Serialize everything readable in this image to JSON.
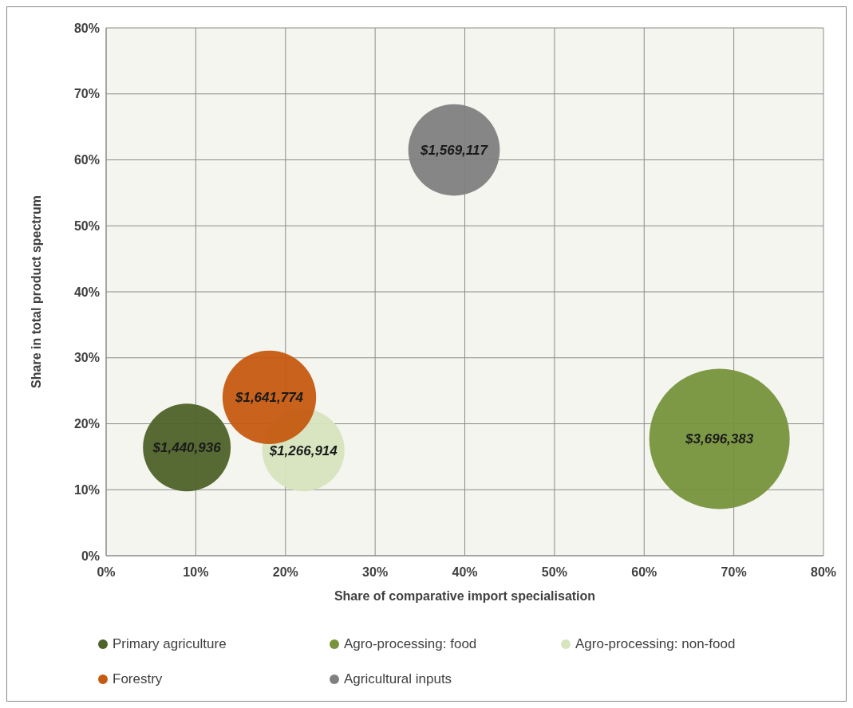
{
  "chart_data": {
    "type": "bubble",
    "xlabel": "Share of comparative import specialisation",
    "ylabel": "Share in total product spectrum",
    "xlim": [
      0,
      80
    ],
    "ylim": [
      0,
      80
    ],
    "xticks": [
      {
        "value": 0,
        "label": "0%"
      },
      {
        "value": 10,
        "label": "10%"
      },
      {
        "value": 20,
        "label": "20%"
      },
      {
        "value": 30,
        "label": "30%"
      },
      {
        "value": 40,
        "label": "40%"
      },
      {
        "value": 50,
        "label": "50%"
      },
      {
        "value": 60,
        "label": "60%"
      },
      {
        "value": 70,
        "label": "70%"
      },
      {
        "value": 80,
        "label": "80%"
      }
    ],
    "yticks": [
      {
        "value": 0,
        "label": "0%"
      },
      {
        "value": 10,
        "label": "10%"
      },
      {
        "value": 20,
        "label": "20%"
      },
      {
        "value": 30,
        "label": "30%"
      },
      {
        "value": 40,
        "label": "40%"
      },
      {
        "value": 50,
        "label": "50%"
      },
      {
        "value": 60,
        "label": "60%"
      },
      {
        "value": 70,
        "label": "70%"
      },
      {
        "value": 80,
        "label": "80%"
      }
    ],
    "grid": true,
    "legend": "bottom",
    "series": [
      {
        "name": "Primary agriculture",
        "color": "#4f6228",
        "x": [
          9
        ],
        "values": [
          16.4
        ],
        "sizes": [
          1440936
        ],
        "value_labels": [
          "$1,440,936"
        ]
      },
      {
        "name": "Agro-processing: food",
        "color": "#77933c",
        "x": [
          68.4
        ],
        "values": [
          17.7
        ],
        "sizes": [
          3696383
        ],
        "value_labels": [
          "$3,696,383"
        ]
      },
      {
        "name": "Agro-processing: non-food",
        "color": "#d7e4bd",
        "x": [
          22
        ],
        "values": [
          16
        ],
        "sizes": [
          1266914
        ],
        "value_labels": [
          "$1,266,914"
        ]
      },
      {
        "name": "Forestry",
        "color": "#c55a11",
        "x": [
          18.2
        ],
        "values": [
          24
        ],
        "sizes": [
          1641774
        ],
        "value_labels": [
          "$1,641,774"
        ]
      },
      {
        "name": "Agricultural inputs",
        "color": "#808080",
        "x": [
          38.8
        ],
        "values": [
          61.5
        ],
        "sizes": [
          1569117
        ],
        "value_labels": [
          "$1,569,117"
        ]
      }
    ]
  }
}
